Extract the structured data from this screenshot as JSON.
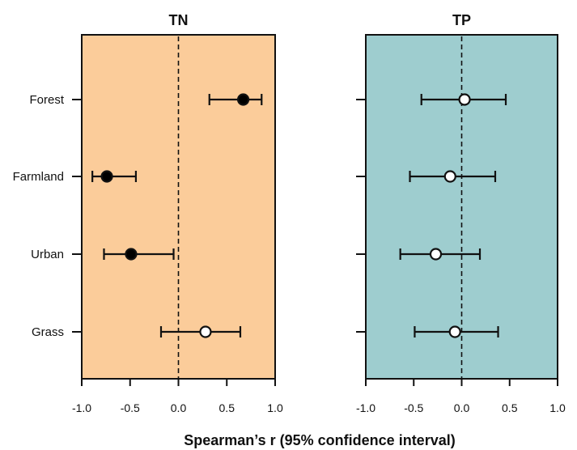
{
  "chart_data": {
    "type": "forest",
    "xlabel": "Spearman’s r (95% confidence interval)",
    "categories": [
      "Forest",
      "Farmland",
      "Urban",
      "Grass"
    ],
    "xlim": [
      -1.0,
      1.0
    ],
    "xticks": [
      "-1.0",
      "-0.5",
      "0.0",
      "0.5",
      "1.0"
    ],
    "xtick_values": [
      -1.0,
      -0.5,
      0.0,
      0.5,
      1.0
    ],
    "reference_line": 0.0,
    "panels": [
      {
        "title": "TN",
        "background": "#FBCC9A",
        "points": [
          {
            "category": "Forest",
            "r": 0.67,
            "lower": 0.32,
            "upper": 0.86,
            "significant": true
          },
          {
            "category": "Farmland",
            "r": -0.74,
            "lower": -0.89,
            "upper": -0.44,
            "significant": true
          },
          {
            "category": "Urban",
            "r": -0.49,
            "lower": -0.77,
            "upper": -0.05,
            "significant": true
          },
          {
            "category": "Grass",
            "r": 0.28,
            "lower": -0.18,
            "upper": 0.64,
            "significant": false
          }
        ]
      },
      {
        "title": "TP",
        "background": "#9ECDCF",
        "points": [
          {
            "category": "Forest",
            "r": 0.03,
            "lower": -0.42,
            "upper": 0.46,
            "significant": false
          },
          {
            "category": "Farmland",
            "r": -0.12,
            "lower": -0.54,
            "upper": 0.35,
            "significant": false
          },
          {
            "category": "Urban",
            "r": -0.27,
            "lower": -0.64,
            "upper": 0.19,
            "significant": false
          },
          {
            "category": "Grass",
            "r": -0.07,
            "lower": -0.49,
            "upper": 0.38,
            "significant": false
          }
        ]
      }
    ]
  }
}
